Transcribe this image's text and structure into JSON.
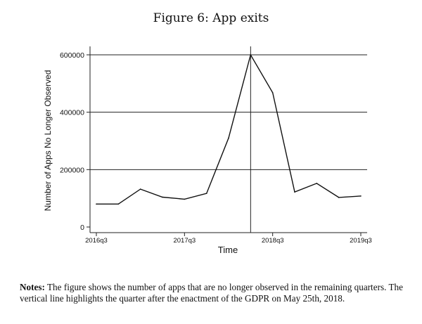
{
  "figure": {
    "title": "Figure 6:  App exits",
    "notes_label": "Notes:",
    "notes_text": "The figure shows the number of apps that are no longer observed in the remaining quarters. The vertical line highlights the quarter after the enactment of the GDPR on May 25th, 2018."
  },
  "chart_data": {
    "type": "line",
    "title": "",
    "xlabel": "Time",
    "ylabel": "Number of Apps No Longer Observed",
    "x": [
      "2016q3",
      "2016q4",
      "2017q1",
      "2017q2",
      "2017q3",
      "2017q4",
      "2018q1",
      "2018q2",
      "2018q3",
      "2018q4",
      "2019q1",
      "2019q2",
      "2019q3"
    ],
    "xticks": [
      "2016q3",
      "2017q3",
      "2018q3",
      "2019q3"
    ],
    "yticks": [
      0,
      200000,
      400000,
      600000
    ],
    "ytick_labels": [
      "0",
      "200000",
      "400000",
      "600000"
    ],
    "ylim": [
      0,
      620000
    ],
    "series": [
      {
        "values": [
          80000,
          80000,
          132000,
          104000,
          97000,
          117000,
          310000,
          600000,
          468000,
          122000,
          152000,
          103000,
          108000
        ]
      }
    ],
    "vertical_line_at": "2018q2",
    "grid": "horizontal"
  }
}
